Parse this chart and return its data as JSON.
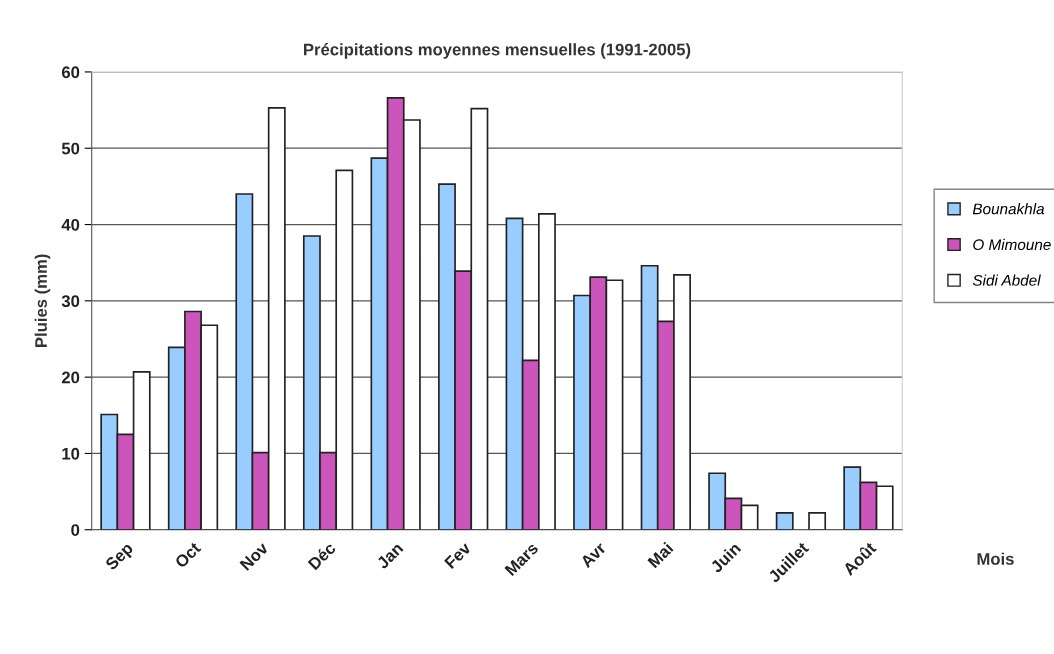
{
  "chart_data": {
    "type": "bar",
    "title": "Précipitations moyennes mensuelles (1991-2005)",
    "xlabel": "Mois",
    "ylabel": "Pluies (mm)",
    "categories": [
      "Sep",
      "Oct",
      "Nov",
      "Déc",
      "Jan",
      "Fev",
      "Mars",
      "Avr",
      "Mai",
      "Juin",
      "Juillet",
      "Août"
    ],
    "series": [
      {
        "name": "Bounakhla",
        "color": "#99ccff",
        "values": [
          15.1,
          23.9,
          44.0,
          38.5,
          48.7,
          45.3,
          40.8,
          30.7,
          34.6,
          7.4,
          2.2,
          8.2
        ]
      },
      {
        "name": "O Mimoune",
        "color": "#cc55bb",
        "values": [
          12.5,
          28.6,
          10.1,
          10.1,
          56.6,
          33.9,
          22.2,
          33.1,
          27.3,
          4.1,
          null,
          6.2
        ]
      },
      {
        "name": "Sidi Abdel",
        "color": "#ffffff",
        "values": [
          20.7,
          26.8,
          55.3,
          47.1,
          53.7,
          55.2,
          41.4,
          32.7,
          33.4,
          3.2,
          2.2,
          5.7
        ]
      }
    ],
    "ylim": [
      0,
      60
    ],
    "yticks": [
      0,
      10,
      20,
      30,
      40,
      50,
      60
    ],
    "grid": "y",
    "legend": "right"
  }
}
